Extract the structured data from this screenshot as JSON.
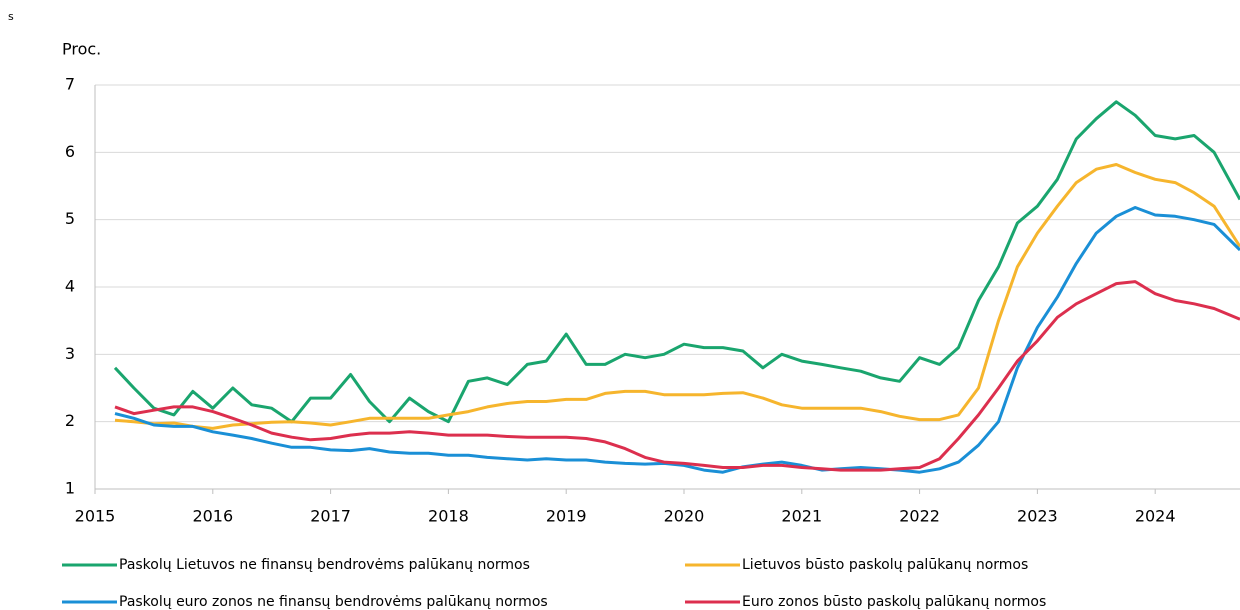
{
  "chart_data": {
    "type": "line",
    "corner_text": "s",
    "y_label": "Proc.",
    "xlim": [
      2015,
      2024.72
    ],
    "xticks": [
      2015,
      2016,
      2017,
      2018,
      2019,
      2020,
      2021,
      2022,
      2023,
      2024
    ],
    "ylim": [
      1,
      7
    ],
    "yticks": [
      1,
      2,
      3,
      4,
      5,
      6,
      7
    ],
    "grid": true,
    "x": [
      2015.17,
      2015.33,
      2015.5,
      2015.67,
      2015.83,
      2016,
      2016.17,
      2016.33,
      2016.5,
      2016.67,
      2016.83,
      2017,
      2017.17,
      2017.33,
      2017.5,
      2017.67,
      2017.83,
      2018,
      2018.17,
      2018.33,
      2018.5,
      2018.67,
      2018.83,
      2019,
      2019.17,
      2019.33,
      2019.5,
      2019.67,
      2019.83,
      2020,
      2020.17,
      2020.33,
      2020.5,
      2020.67,
      2020.83,
      2021,
      2021.17,
      2021.33,
      2021.5,
      2021.67,
      2021.83,
      2022,
      2022.17,
      2022.33,
      2022.5,
      2022.67,
      2022.83,
      2023,
      2023.17,
      2023.33,
      2023.5,
      2023.67,
      2023.83,
      2024,
      2024.17,
      2024.33,
      2024.5,
      2024.72
    ],
    "series": [
      {
        "name": "Paskolų Lietuvos ne finansų bendrovėms palūkanų normos",
        "color": "#1aa56e",
        "values": [
          2.8,
          2.5,
          2.2,
          2.1,
          2.45,
          2.2,
          2.5,
          2.25,
          2.2,
          2.0,
          2.35,
          2.35,
          2.7,
          2.3,
          2.0,
          2.35,
          2.15,
          2.0,
          2.6,
          2.65,
          2.55,
          2.85,
          2.9,
          3.3,
          2.85,
          2.85,
          3.0,
          2.95,
          3.0,
          3.15,
          3.1,
          3.1,
          3.05,
          2.8,
          3.0,
          2.9,
          2.85,
          2.8,
          2.75,
          2.65,
          2.6,
          2.95,
          2.85,
          3.1,
          3.8,
          4.3,
          4.95,
          5.2,
          5.6,
          6.2,
          6.5,
          6.75,
          6.55,
          6.25,
          6.2,
          6.25,
          6.0,
          5.3
        ]
      },
      {
        "name": "Lietuvos būsto paskolų palūkanų normos",
        "color": "#f6b52d",
        "values": [
          2.02,
          2.0,
          1.97,
          1.98,
          1.93,
          1.9,
          1.95,
          1.97,
          1.99,
          2.0,
          1.98,
          1.95,
          2.0,
          2.05,
          2.05,
          2.05,
          2.05,
          2.1,
          2.15,
          2.22,
          2.27,
          2.3,
          2.3,
          2.33,
          2.33,
          2.42,
          2.45,
          2.45,
          2.4,
          2.4,
          2.4,
          2.42,
          2.43,
          2.35,
          2.25,
          2.2,
          2.2,
          2.2,
          2.2,
          2.15,
          2.08,
          2.03,
          2.03,
          2.1,
          2.5,
          3.5,
          4.3,
          4.8,
          5.2,
          5.55,
          5.75,
          5.82,
          5.7,
          5.6,
          5.55,
          5.4,
          5.2,
          4.6
        ]
      },
      {
        "name": "Paskolų euro zonos ne finansų bendrovėms palūkanų normos",
        "color": "#1a8fd6",
        "values": [
          2.12,
          2.05,
          1.95,
          1.93,
          1.93,
          1.85,
          1.8,
          1.75,
          1.68,
          1.62,
          1.62,
          1.58,
          1.57,
          1.6,
          1.55,
          1.53,
          1.53,
          1.5,
          1.5,
          1.47,
          1.45,
          1.43,
          1.45,
          1.43,
          1.43,
          1.4,
          1.38,
          1.37,
          1.38,
          1.35,
          1.28,
          1.25,
          1.33,
          1.37,
          1.4,
          1.35,
          1.28,
          1.3,
          1.32,
          1.3,
          1.28,
          1.25,
          1.3,
          1.4,
          1.65,
          2.0,
          2.8,
          3.4,
          3.85,
          4.35,
          4.8,
          5.05,
          5.18,
          5.07,
          5.05,
          5.0,
          4.93,
          4.55
        ]
      },
      {
        "name": "Euro zonos būsto paskolų palūkanų normos",
        "color": "#dc2f4e",
        "values": [
          2.22,
          2.12,
          2.17,
          2.22,
          2.22,
          2.15,
          2.05,
          1.95,
          1.83,
          1.77,
          1.73,
          1.75,
          1.8,
          1.83,
          1.83,
          1.85,
          1.83,
          1.8,
          1.8,
          1.8,
          1.78,
          1.77,
          1.77,
          1.77,
          1.75,
          1.7,
          1.6,
          1.47,
          1.4,
          1.38,
          1.35,
          1.32,
          1.32,
          1.35,
          1.35,
          1.32,
          1.3,
          1.28,
          1.28,
          1.28,
          1.3,
          1.32,
          1.45,
          1.75,
          2.1,
          2.5,
          2.9,
          3.2,
          3.55,
          3.75,
          3.9,
          4.05,
          4.08,
          3.9,
          3.8,
          3.75,
          3.68,
          3.52
        ]
      }
    ]
  }
}
